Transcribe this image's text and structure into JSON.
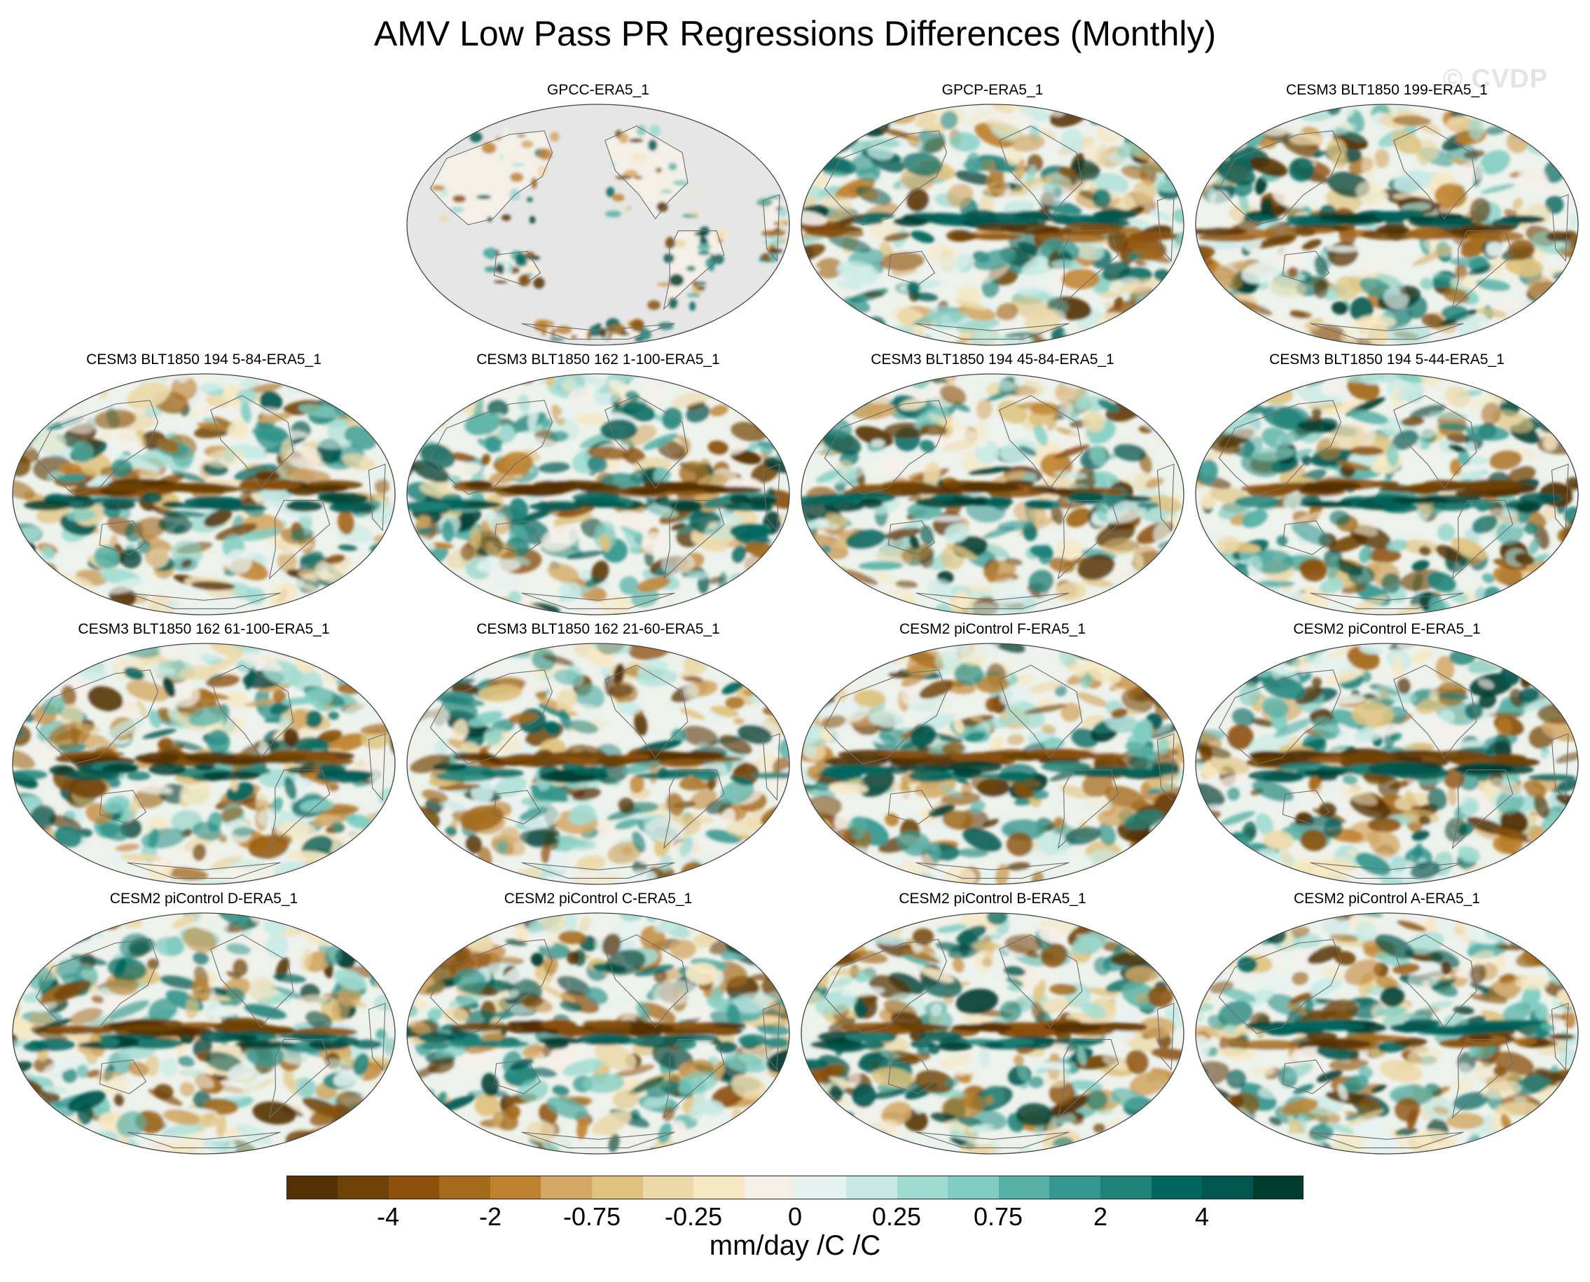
{
  "title": "AMV Low Pass PR Regressions Differences (Monthly)",
  "watermark": "© CVDP",
  "units": "mm/day /C /C",
  "colorbar": {
    "colors": [
      "#543005",
      "#6f4207",
      "#8c510a",
      "#a46a1c",
      "#bf812d",
      "#d3a865",
      "#dfc27d",
      "#ecd9aa",
      "#f6e8c3",
      "#f4f0e8",
      "#e6f2f0",
      "#c7eae5",
      "#a0dbd2",
      "#80cdc1",
      "#58b1a6",
      "#35978f",
      "#1e8278",
      "#01665e",
      "#01574f",
      "#003c30"
    ],
    "tick_labels": [
      "-4",
      "-2",
      "-0.75",
      "-0.25",
      "0",
      "0.25",
      "0.75",
      "2",
      "4"
    ]
  },
  "panels": [
    {
      "label": "GPCC-ERA5_1",
      "kind": "land",
      "seed": 3
    },
    {
      "label": "GPCP-ERA5_1",
      "kind": "full",
      "seed": 11
    },
    {
      "label": "CESM3 BLT1850 199-ERA5_1",
      "kind": "full",
      "seed": 17
    },
    {
      "label": "CESM3 BLT1850 194 5-84-ERA5_1",
      "kind": "full",
      "seed": 23
    },
    {
      "label": "CESM3 BLT1850 162 1-100-ERA5_1",
      "kind": "full",
      "seed": 29
    },
    {
      "label": "CESM3 BLT1850 194 45-84-ERA5_1",
      "kind": "full",
      "seed": 31
    },
    {
      "label": "CESM3 BLT1850 194 5-44-ERA5_1",
      "kind": "full",
      "seed": 37
    },
    {
      "label": "CESM3 BLT1850 162 61-100-ERA5_1",
      "kind": "full",
      "seed": 41
    },
    {
      "label": "CESM3 BLT1850 162 21-60-ERA5_1",
      "kind": "full",
      "seed": 43
    },
    {
      "label": "CESM2 piControl F-ERA5_1",
      "kind": "full",
      "seed": 47
    },
    {
      "label": "CESM2 piControl E-ERA5_1",
      "kind": "full",
      "seed": 53
    },
    {
      "label": "CESM2 piControl D-ERA5_1",
      "kind": "full",
      "seed": 59
    },
    {
      "label": "CESM2 piControl C-ERA5_1",
      "kind": "full",
      "seed": 61
    },
    {
      "label": "CESM2 piControl B-ERA5_1",
      "kind": "full",
      "seed": 67
    },
    {
      "label": "CESM2 piControl A-ERA5_1",
      "kind": "full",
      "seed": 71
    }
  ]
}
